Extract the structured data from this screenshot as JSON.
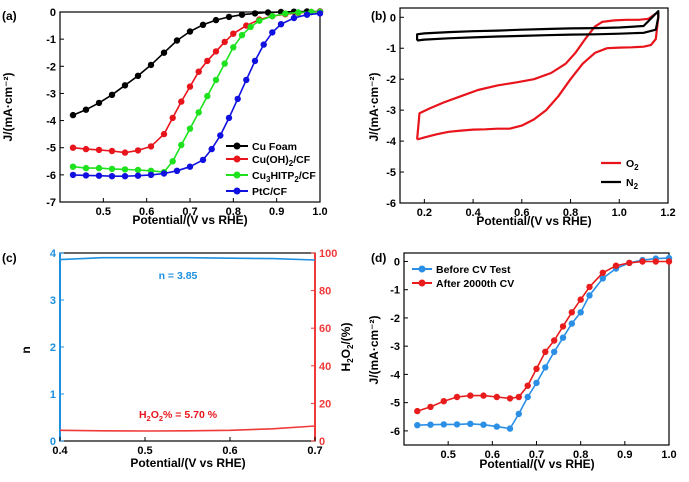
{
  "chart_data": [
    {
      "panel_label": "(a)",
      "type": "line",
      "xlabel": "Potential/(V vs RHE)",
      "ylabel": "J/(mA·cm⁻²)",
      "xlim": [
        0.4,
        1.0
      ],
      "ylim": [
        -7,
        0
      ],
      "xticks": [
        0.5,
        0.6,
        0.7,
        0.8,
        0.9,
        1.0
      ],
      "yticks": [
        0,
        -1,
        -2,
        -3,
        -4,
        -5,
        -6,
        -7
      ],
      "legend_position": "bottom-right",
      "series": [
        {
          "name": "Cu Foam",
          "color": "#000000",
          "x": [
            0.43,
            0.46,
            0.49,
            0.52,
            0.55,
            0.58,
            0.61,
            0.64,
            0.67,
            0.7,
            0.73,
            0.76,
            0.79,
            0.82,
            0.85,
            0.88,
            0.91,
            0.94,
            0.97,
            1.0
          ],
          "y": [
            -3.8,
            -3.6,
            -3.35,
            -3.05,
            -2.7,
            -2.35,
            -1.95,
            -1.5,
            -1.05,
            -0.72,
            -0.47,
            -0.3,
            -0.18,
            -0.1,
            -0.05,
            -0.02,
            0.0,
            0.01,
            0.02,
            0.02
          ]
        },
        {
          "name": "Cu(OH)2/CF",
          "color": "#e8141c",
          "x": [
            0.43,
            0.46,
            0.49,
            0.52,
            0.55,
            0.58,
            0.61,
            0.64,
            0.66,
            0.68,
            0.7,
            0.72,
            0.74,
            0.76,
            0.78,
            0.8,
            0.83,
            0.86,
            0.89,
            0.92,
            0.95,
            0.98,
            1.0
          ],
          "y": [
            -5.0,
            -5.05,
            -5.08,
            -5.12,
            -5.18,
            -5.1,
            -4.95,
            -4.5,
            -3.9,
            -3.3,
            -2.75,
            -2.2,
            -1.8,
            -1.45,
            -1.1,
            -0.8,
            -0.5,
            -0.28,
            -0.15,
            -0.08,
            -0.03,
            0.0,
            0.01
          ]
        },
        {
          "name": "Cu3HITP2/CF",
          "color": "#1ee21e",
          "x": [
            0.43,
            0.46,
            0.49,
            0.52,
            0.55,
            0.58,
            0.61,
            0.64,
            0.66,
            0.68,
            0.7,
            0.72,
            0.74,
            0.76,
            0.78,
            0.8,
            0.82,
            0.84,
            0.86,
            0.89,
            0.92,
            0.95,
            0.98,
            1.0
          ],
          "y": [
            -5.7,
            -5.75,
            -5.75,
            -5.78,
            -5.8,
            -5.82,
            -5.85,
            -5.9,
            -5.5,
            -4.9,
            -4.3,
            -3.7,
            -3.1,
            -2.5,
            -1.9,
            -1.3,
            -0.85,
            -0.55,
            -0.32,
            -0.15,
            -0.06,
            -0.02,
            0.0,
            0.0
          ]
        },
        {
          "name": "PtC/CF",
          "color": "#1010e0",
          "x": [
            0.43,
            0.46,
            0.49,
            0.52,
            0.55,
            0.58,
            0.61,
            0.64,
            0.67,
            0.7,
            0.73,
            0.75,
            0.77,
            0.79,
            0.81,
            0.83,
            0.85,
            0.87,
            0.89,
            0.91,
            0.94,
            0.97,
            1.0
          ],
          "y": [
            -6.0,
            -6.02,
            -6.03,
            -6.05,
            -6.05,
            -6.03,
            -6.0,
            -5.95,
            -5.85,
            -5.7,
            -5.45,
            -5.05,
            -4.55,
            -3.9,
            -3.2,
            -2.5,
            -1.8,
            -1.2,
            -0.75,
            -0.45,
            -0.22,
            -0.1,
            -0.05
          ]
        }
      ]
    },
    {
      "panel_label": "(b)",
      "type": "line",
      "xlabel": "Potential/(V vs RHE)",
      "ylabel": "J/(mA·cm⁻²)",
      "xlim": [
        0.1,
        1.2
      ],
      "ylim": [
        -6,
        0.3
      ],
      "xticks": [
        0.2,
        0.4,
        0.6,
        0.8,
        1.0,
        1.2
      ],
      "yticks": [
        0,
        -1,
        -2,
        -3,
        -4,
        -5,
        -6
      ],
      "legend_position": "bottom-right",
      "series": [
        {
          "name": "O2",
          "color": "#e8141c",
          "x": [
            0.17,
            0.2,
            0.25,
            0.3,
            0.35,
            0.4,
            0.45,
            0.5,
            0.55,
            0.6,
            0.65,
            0.7,
            0.75,
            0.8,
            0.85,
            0.9,
            0.95,
            1.0,
            1.05,
            1.1,
            1.13,
            1.15,
            1.16,
            1.16,
            1.15,
            1.12,
            1.08,
            1.03,
            0.98,
            0.93,
            0.9,
            0.86,
            0.82,
            0.78,
            0.72,
            0.65,
            0.58,
            0.5,
            0.42,
            0.35,
            0.28,
            0.22,
            0.18,
            0.17
          ],
          "y": [
            -3.95,
            -3.88,
            -3.78,
            -3.7,
            -3.66,
            -3.63,
            -3.62,
            -3.6,
            -3.6,
            -3.5,
            -3.3,
            -3.0,
            -2.55,
            -2.0,
            -1.5,
            -1.15,
            -1.0,
            -0.98,
            -0.97,
            -0.95,
            -0.9,
            -0.7,
            0.0,
            0.15,
            0.12,
            -0.05,
            -0.08,
            -0.08,
            -0.1,
            -0.15,
            -0.3,
            -0.7,
            -1.15,
            -1.5,
            -1.8,
            -2.0,
            -2.1,
            -2.2,
            -2.35,
            -2.55,
            -2.75,
            -2.95,
            -3.1,
            -3.95
          ]
        },
        {
          "name": "N2",
          "color": "#000000",
          "x": [
            0.17,
            0.2,
            0.3,
            0.4,
            0.5,
            0.6,
            0.7,
            0.8,
            0.9,
            1.0,
            1.1,
            1.15,
            1.16,
            1.16,
            1.15,
            1.1,
            1.0,
            0.9,
            0.8,
            0.7,
            0.6,
            0.5,
            0.4,
            0.3,
            0.2,
            0.17,
            0.17
          ],
          "y": [
            -0.75,
            -0.72,
            -0.68,
            -0.65,
            -0.62,
            -0.6,
            -0.58,
            -0.56,
            -0.55,
            -0.53,
            -0.5,
            -0.4,
            0.0,
            0.2,
            0.12,
            -0.28,
            -0.33,
            -0.35,
            -0.36,
            -0.38,
            -0.4,
            -0.43,
            -0.45,
            -0.48,
            -0.52,
            -0.55,
            -0.75
          ]
        }
      ]
    },
    {
      "panel_label": "(c)",
      "type": "line",
      "xlabel": "Potential/(V vs RHE)",
      "ylabel": "n",
      "y2label": "H2O2/(%)",
      "xlim": [
        0.4,
        0.7
      ],
      "ylim": [
        0,
        4
      ],
      "y2lim": [
        0,
        100
      ],
      "xticks": [
        0.4,
        0.5,
        0.6,
        0.7
      ],
      "yticks": [
        0,
        1,
        2,
        3,
        4
      ],
      "y2ticks": [
        0,
        20,
        40,
        60,
        80,
        100
      ],
      "annotations": [
        "n = 3.85",
        "H2O2% = 5.70 %"
      ],
      "series": [
        {
          "name": "n",
          "color": "#1e90e0",
          "axis": "left",
          "x": [
            0.4,
            0.45,
            0.5,
            0.55,
            0.6,
            0.65,
            0.7
          ],
          "y": [
            3.86,
            3.9,
            3.9,
            3.9,
            3.89,
            3.88,
            3.85
          ]
        },
        {
          "name": "H2O2%",
          "color": "#f03a3a",
          "axis": "right",
          "x": [
            0.4,
            0.45,
            0.5,
            0.55,
            0.6,
            0.65,
            0.7
          ],
          "y": [
            5.7,
            5.4,
            5.3,
            5.4,
            5.7,
            6.5,
            8.0
          ]
        }
      ]
    },
    {
      "panel_label": "(d)",
      "type": "line",
      "xlabel": "Potential/(V vs RHE)",
      "ylabel": "J/(mA·cm⁻²)",
      "xlim": [
        0.4,
        1.0
      ],
      "ylim": [
        -6.5,
        0.3
      ],
      "xticks": [
        0.5,
        0.6,
        0.7,
        0.8,
        0.9,
        1.0
      ],
      "yticks": [
        0,
        -1,
        -2,
        -3,
        -4,
        -5,
        -6
      ],
      "legend_position": "top-left",
      "series": [
        {
          "name": "Before CV Test",
          "color": "#2b8fe6",
          "x": [
            0.43,
            0.46,
            0.49,
            0.52,
            0.55,
            0.58,
            0.61,
            0.64,
            0.66,
            0.68,
            0.7,
            0.72,
            0.74,
            0.76,
            0.78,
            0.8,
            0.82,
            0.85,
            0.88,
            0.91,
            0.94,
            0.97,
            1.0
          ],
          "y": [
            -5.8,
            -5.78,
            -5.77,
            -5.77,
            -5.75,
            -5.78,
            -5.85,
            -5.92,
            -5.4,
            -4.8,
            -4.3,
            -3.75,
            -3.2,
            -2.7,
            -2.2,
            -1.8,
            -1.2,
            -0.6,
            -0.25,
            -0.05,
            0.05,
            0.1,
            0.12
          ]
        },
        {
          "name": "After 2000th CV",
          "color": "#e81c1c",
          "x": [
            0.43,
            0.46,
            0.49,
            0.52,
            0.55,
            0.58,
            0.61,
            0.64,
            0.66,
            0.68,
            0.7,
            0.72,
            0.74,
            0.76,
            0.78,
            0.8,
            0.82,
            0.85,
            0.88,
            0.91,
            0.94,
            0.97,
            1.0
          ],
          "y": [
            -5.3,
            -5.15,
            -4.95,
            -4.8,
            -4.75,
            -4.75,
            -4.8,
            -4.85,
            -4.8,
            -4.4,
            -3.8,
            -3.2,
            -2.8,
            -2.3,
            -1.8,
            -1.35,
            -0.9,
            -0.4,
            -0.15,
            -0.05,
            0.0,
            0.0,
            0.0
          ]
        }
      ]
    }
  ],
  "texts": {
    "a": {
      "label": "(a)",
      "xlabel": "Potential/(V vs RHE)",
      "ylabel": "J/(mA·cm⁻²)",
      "legend": [
        "Cu Foam",
        "Cu(OH)2/CF",
        "Cu3HITP2/CF",
        "PtC/CF"
      ]
    },
    "b": {
      "label": "(b)",
      "xlabel": "Potential/(V vs RHE)",
      "ylabel": "J/(mA·cm⁻²)",
      "legend": [
        "O2",
        "N2"
      ]
    },
    "c": {
      "label": "(c)",
      "xlabel": "Potential/(V vs RHE)",
      "ylabel": "n",
      "y2label": "H2O2/(%)",
      "annot_n": "n = 3.85",
      "annot_h2o2": "H2O2% = 5.70 %"
    },
    "d": {
      "label": "(d)",
      "xlabel": "Potential/(V vs RHE)",
      "ylabel": "J/(mA·cm⁻²)",
      "legend": [
        "Before CV Test",
        "After 2000th CV"
      ]
    }
  }
}
